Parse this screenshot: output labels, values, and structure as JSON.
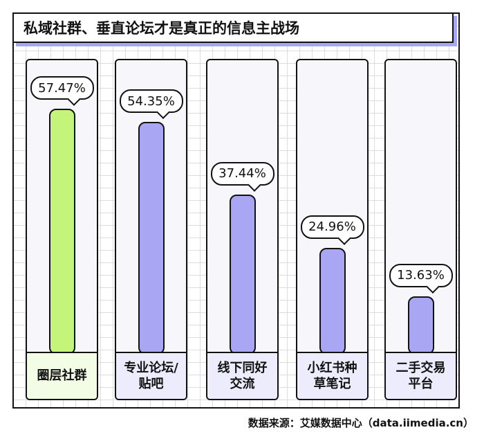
{
  "title": "私域社群、垂直论坛才是真正的信息主战场",
  "source": "数据来源：艾媒数据中心（data.iimedia.cn）",
  "colors": {
    "highlight": "#c4f57a",
    "bar": "#a9a7f4",
    "title_shadow": "#a7a6f3"
  },
  "chart_data": {
    "type": "bar",
    "title": "私域社群、垂直论坛才是真正的信息主战场",
    "categories": [
      "圈层社群",
      "专业论坛/\n贴吧",
      "线下同好\n交流",
      "小红书种\n草笔记",
      "二手交易\n平台"
    ],
    "values": [
      57.47,
      54.35,
      37.44,
      24.96,
      13.63
    ],
    "value_labels": [
      "57.47%",
      "54.35%",
      "37.44%",
      "24.96%",
      "13.63%"
    ],
    "unit": "%",
    "highlight_index": 0,
    "grid": true,
    "xlabel": "",
    "ylabel": ""
  }
}
